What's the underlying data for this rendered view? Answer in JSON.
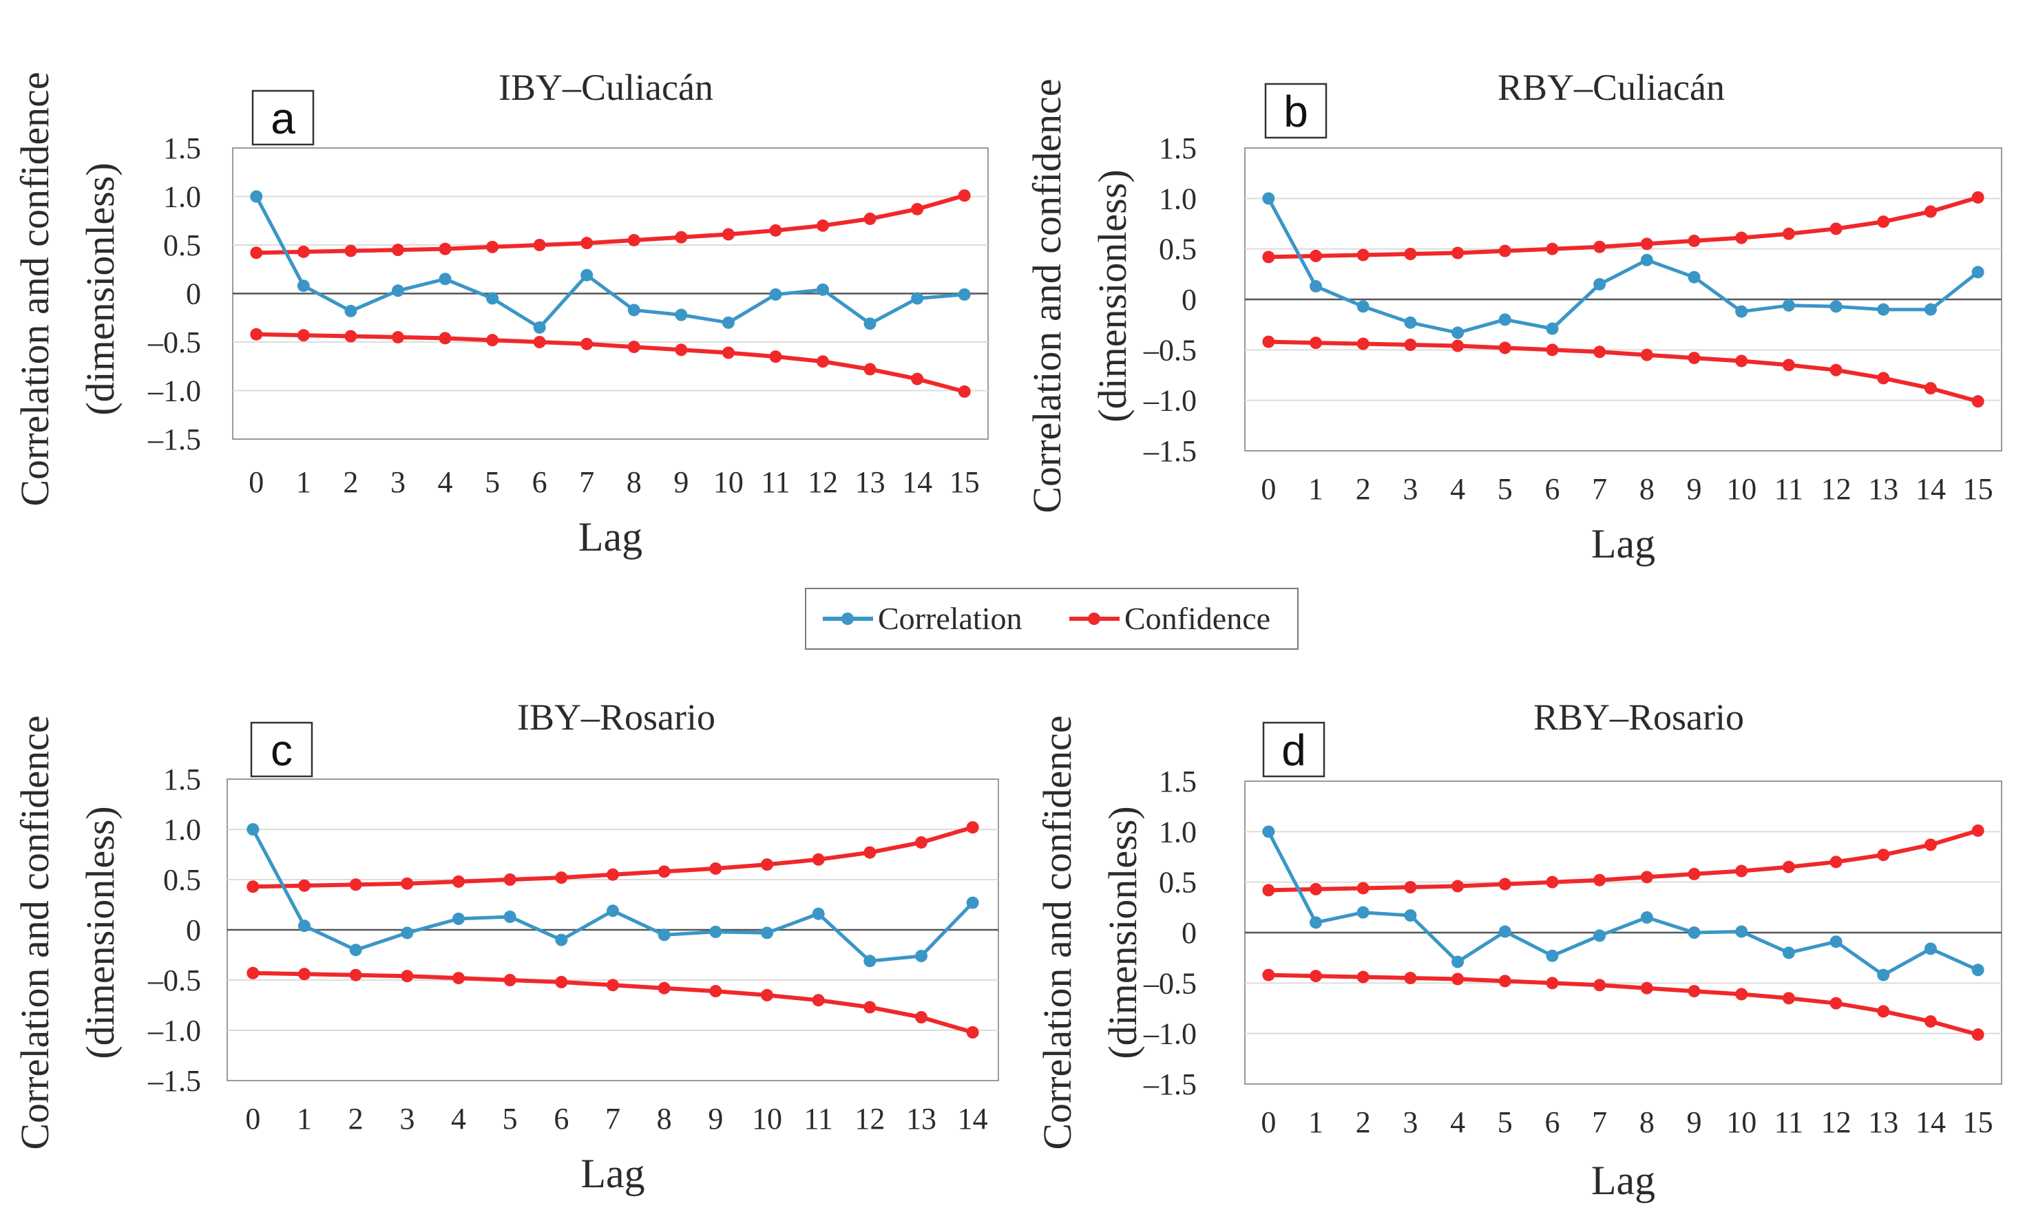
{
  "legend": {
    "correlation_label": "Correlation",
    "confidence_label": "Confidence",
    "correlation_color": "#3a96c6",
    "confidence_color": "#f0282a"
  },
  "chart_data": [
    {
      "type": "line",
      "panel_label": "a",
      "title": "IBY–Culiacán",
      "xlabel": "Lag",
      "ylabel_line1": "Correlation and confidence",
      "ylabel_line2": "(dimensionless)",
      "ylim": [
        -1.5,
        1.5
      ],
      "yticks": [
        1.5,
        1.0,
        0.5,
        0,
        -0.5,
        -1.0,
        -1.5
      ],
      "ytick_labels": [
        "1.5",
        "1.0",
        "0.5",
        "0",
        "–0.5",
        "–1.0",
        "–1.5"
      ],
      "x": [
        0,
        1,
        2,
        3,
        4,
        5,
        6,
        7,
        8,
        9,
        10,
        11,
        12,
        13,
        14,
        15
      ],
      "series": [
        {
          "name": "Correlation",
          "values": [
            1.0,
            0.08,
            -0.18,
            0.03,
            0.15,
            -0.05,
            -0.35,
            0.19,
            -0.17,
            -0.22,
            -0.3,
            -0.01,
            0.04,
            -0.31,
            -0.05,
            -0.01
          ]
        },
        {
          "name": "Confidence",
          "values": [
            0.42,
            0.43,
            0.44,
            0.45,
            0.46,
            0.48,
            0.5,
            0.52,
            0.55,
            0.58,
            0.61,
            0.65,
            0.7,
            0.77,
            0.87,
            1.01
          ]
        },
        {
          "name": "Confidence",
          "values": [
            -0.42,
            -0.43,
            -0.44,
            -0.45,
            -0.46,
            -0.48,
            -0.5,
            -0.52,
            -0.55,
            -0.58,
            -0.61,
            -0.65,
            -0.7,
            -0.78,
            -0.88,
            -1.01
          ]
        }
      ]
    },
    {
      "type": "line",
      "panel_label": "b",
      "title": "RBY–Culiacán",
      "xlabel": "Lag",
      "ylabel_line1": "Correlation and confidence",
      "ylabel_line2": "(dimensionless)",
      "ylim": [
        -1.5,
        1.5
      ],
      "yticks": [
        1.5,
        1.0,
        0.5,
        0,
        -0.5,
        -1.0,
        -1.5
      ],
      "ytick_labels": [
        "1.5",
        "1.0",
        "0.5",
        "0",
        "–0.5",
        "–1.0",
        "–1.5"
      ],
      "x": [
        0,
        1,
        2,
        3,
        4,
        5,
        6,
        7,
        8,
        9,
        10,
        11,
        12,
        13,
        14,
        15
      ],
      "series": [
        {
          "name": "Correlation",
          "values": [
            1.0,
            0.13,
            -0.07,
            -0.23,
            -0.33,
            -0.2,
            -0.29,
            0.15,
            0.39,
            0.22,
            -0.12,
            -0.06,
            -0.07,
            -0.1,
            -0.1,
            0.27
          ]
        },
        {
          "name": "Confidence",
          "values": [
            0.42,
            0.43,
            0.44,
            0.45,
            0.46,
            0.48,
            0.5,
            0.52,
            0.55,
            0.58,
            0.61,
            0.65,
            0.7,
            0.77,
            0.87,
            1.01
          ]
        },
        {
          "name": "Confidence",
          "values": [
            -0.42,
            -0.43,
            -0.44,
            -0.45,
            -0.46,
            -0.48,
            -0.5,
            -0.52,
            -0.55,
            -0.58,
            -0.61,
            -0.65,
            -0.7,
            -0.78,
            -0.88,
            -1.01
          ]
        }
      ]
    },
    {
      "type": "line",
      "panel_label": "c",
      "title": "IBY–Rosario",
      "xlabel": "Lag",
      "ylabel_line1": "Correlation and confidence",
      "ylabel_line2": "(dimensionless)",
      "ylim": [
        -1.5,
        1.5
      ],
      "yticks": [
        1.5,
        1.0,
        0.5,
        0,
        -0.5,
        -1.0,
        -1.5
      ],
      "ytick_labels": [
        "1.5",
        "1.0",
        "0.5",
        "0",
        "–0.5",
        "–1.0",
        "–1.5"
      ],
      "x": [
        0,
        1,
        2,
        3,
        4,
        5,
        6,
        7,
        8,
        9,
        10,
        11,
        12,
        13,
        14
      ],
      "series": [
        {
          "name": "Correlation",
          "values": [
            1.0,
            0.04,
            -0.2,
            -0.03,
            0.11,
            0.13,
            -0.1,
            0.19,
            -0.05,
            -0.02,
            -0.03,
            0.16,
            -0.31,
            -0.26,
            0.27
          ]
        },
        {
          "name": "Confidence",
          "values": [
            0.43,
            0.44,
            0.45,
            0.46,
            0.48,
            0.5,
            0.52,
            0.55,
            0.58,
            0.61,
            0.65,
            0.7,
            0.77,
            0.87,
            1.02
          ]
        },
        {
          "name": "Confidence",
          "values": [
            -0.43,
            -0.44,
            -0.45,
            -0.46,
            -0.48,
            -0.5,
            -0.52,
            -0.55,
            -0.58,
            -0.61,
            -0.65,
            -0.7,
            -0.77,
            -0.87,
            -1.02
          ]
        }
      ]
    },
    {
      "type": "line",
      "panel_label": "d",
      "title": "RBY–Rosario",
      "xlabel": "Lag",
      "ylabel_line1": "Correlation and confidence",
      "ylabel_line2": "(dimensionless)",
      "ylim": [
        -1.5,
        1.5
      ],
      "yticks": [
        1.5,
        1.0,
        0.5,
        0,
        -0.5,
        -1.0,
        -1.5
      ],
      "ytick_labels": [
        "1.5",
        "1.0",
        "0.5",
        "0",
        "–0.5",
        "–1.0",
        "–1.5"
      ],
      "x": [
        0,
        1,
        2,
        3,
        4,
        5,
        6,
        7,
        8,
        9,
        10,
        11,
        12,
        13,
        14,
        15
      ],
      "series": [
        {
          "name": "Correlation",
          "values": [
            1.0,
            0.1,
            0.2,
            0.17,
            -0.29,
            0.01,
            -0.23,
            -0.03,
            0.15,
            0.0,
            0.01,
            -0.2,
            -0.09,
            -0.42,
            -0.16,
            -0.37
          ]
        },
        {
          "name": "Confidence",
          "values": [
            0.42,
            0.43,
            0.44,
            0.45,
            0.46,
            0.48,
            0.5,
            0.52,
            0.55,
            0.58,
            0.61,
            0.65,
            0.7,
            0.77,
            0.87,
            1.01
          ]
        },
        {
          "name": "Confidence",
          "values": [
            -0.42,
            -0.43,
            -0.44,
            -0.45,
            -0.46,
            -0.48,
            -0.5,
            -0.52,
            -0.55,
            -0.58,
            -0.61,
            -0.65,
            -0.7,
            -0.78,
            -0.88,
            -1.01
          ]
        }
      ]
    }
  ]
}
